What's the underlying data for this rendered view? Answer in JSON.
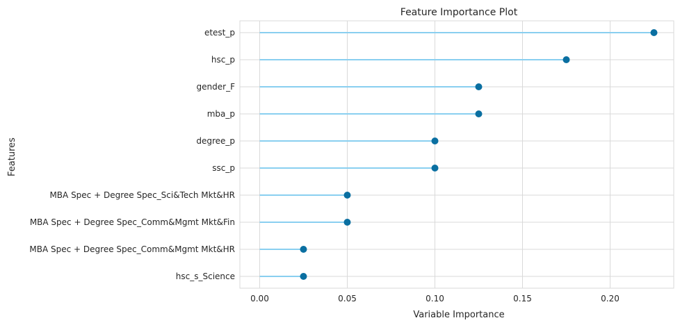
{
  "chart_data": {
    "type": "lollipop",
    "title": "Feature Importance Plot",
    "xlabel": "Variable Importance",
    "ylabel": "Features",
    "xlim": [
      -0.0113,
      0.2363
    ],
    "xticks": [
      "0.00",
      "0.05",
      "0.10",
      "0.15",
      "0.20"
    ],
    "grid": true,
    "legend": "none",
    "colors": {
      "stem": "#89cff0",
      "marker": "#0a6fa1",
      "grid": "#d9d9d9",
      "frame": "#d9d9d9"
    },
    "categories": [
      "etest_p",
      "hsc_p",
      "gender_F",
      "mba_p",
      "degree_p",
      "ssc_p",
      "MBA Spec + Degree Spec_Sci&Tech Mkt&HR",
      "MBA Spec + Degree Spec_Comm&Mgmt Mkt&Fin",
      "MBA Spec + Degree Spec_Comm&Mgmt Mkt&HR",
      "hsc_s_Science"
    ],
    "values": [
      0.225,
      0.175,
      0.125,
      0.125,
      0.1,
      0.1,
      0.05,
      0.05,
      0.025,
      0.025
    ]
  }
}
